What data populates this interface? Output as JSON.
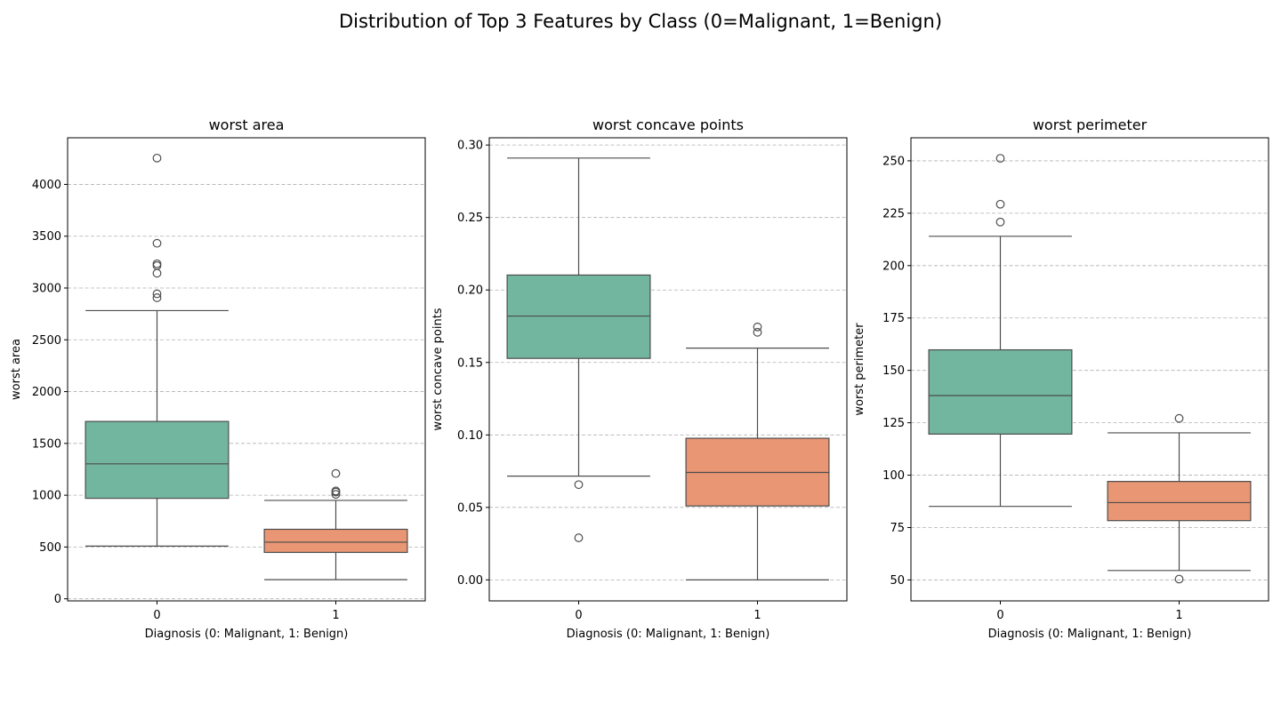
{
  "figure": {
    "suptitle": "Distribution of Top 3 Features by Class (0=Malignant, 1=Benign)"
  },
  "colors": {
    "class0": "#72b6a0",
    "class1": "#e99674",
    "line": "#4d4d4d"
  },
  "chart_data": [
    {
      "type": "box",
      "title": "worst area",
      "xlabel": "Diagnosis (0: Malignant, 1: Benign)",
      "ylabel": "worst area",
      "categories": [
        "0",
        "1"
      ],
      "ylim": [
        -20,
        4450
      ],
      "yticks": [
        0,
        500,
        1000,
        1500,
        2000,
        2500,
        3000,
        3500,
        4000
      ],
      "grid": "y",
      "boxes": [
        {
          "category": "0",
          "whislo": 509,
          "q1": 970,
          "median": 1303,
          "q3": 1712,
          "whishi": 2782,
          "fliers": [
            4254,
            3432,
            3234,
            3216,
            3143,
            2944,
            2906
          ]
        },
        {
          "category": "1",
          "whislo": 185,
          "q1": 448,
          "median": 547,
          "q3": 671,
          "whishi": 950,
          "fliers": [
            1210,
            1041,
            1030,
            1008
          ]
        }
      ]
    },
    {
      "type": "box",
      "title": "worst concave points",
      "xlabel": "Diagnosis (0: Malignant, 1: Benign)",
      "ylabel": "worst concave points",
      "categories": [
        "0",
        "1"
      ],
      "ylim": [
        -0.0145,
        0.305
      ],
      "yticks": [
        0.0,
        0.05,
        0.1,
        0.15,
        0.2,
        0.25,
        0.3
      ],
      "yticklabels": [
        "0.00",
        "0.05",
        "0.10",
        "0.15",
        "0.20",
        "0.25",
        "0.30"
      ],
      "grid": "y",
      "boxes": [
        {
          "category": "0",
          "whislo": 0.0716,
          "q1": 0.1528,
          "median": 0.182,
          "q3": 0.2103,
          "whishi": 0.291,
          "fliers": [
            0.0657,
            0.029
          ]
        },
        {
          "category": "1",
          "whislo": 0.0,
          "q1": 0.051,
          "median": 0.0741,
          "q3": 0.0977,
          "whishi": 0.1599,
          "fliers": [
            0.1745,
            0.1708
          ]
        }
      ]
    },
    {
      "type": "box",
      "title": "worst perimeter",
      "xlabel": "Diagnosis (0: Malignant, 1: Benign)",
      "ylabel": "worst perimeter",
      "categories": [
        "0",
        "1"
      ],
      "ylim": [
        40,
        261
      ],
      "yticks": [
        50,
        75,
        100,
        125,
        150,
        175,
        200,
        225,
        250
      ],
      "grid": "y",
      "boxes": [
        {
          "category": "0",
          "whislo": 85.1,
          "q1": 119.6,
          "median": 138.0,
          "q3": 159.8,
          "whishi": 214.0,
          "fliers": [
            251.2,
            229.3,
            220.8
          ]
        },
        {
          "category": "1",
          "whislo": 54.5,
          "q1": 78.3,
          "median": 86.9,
          "q3": 97.0,
          "whishi": 120.2,
          "fliers": [
            127.1,
            50.4
          ]
        }
      ]
    }
  ]
}
